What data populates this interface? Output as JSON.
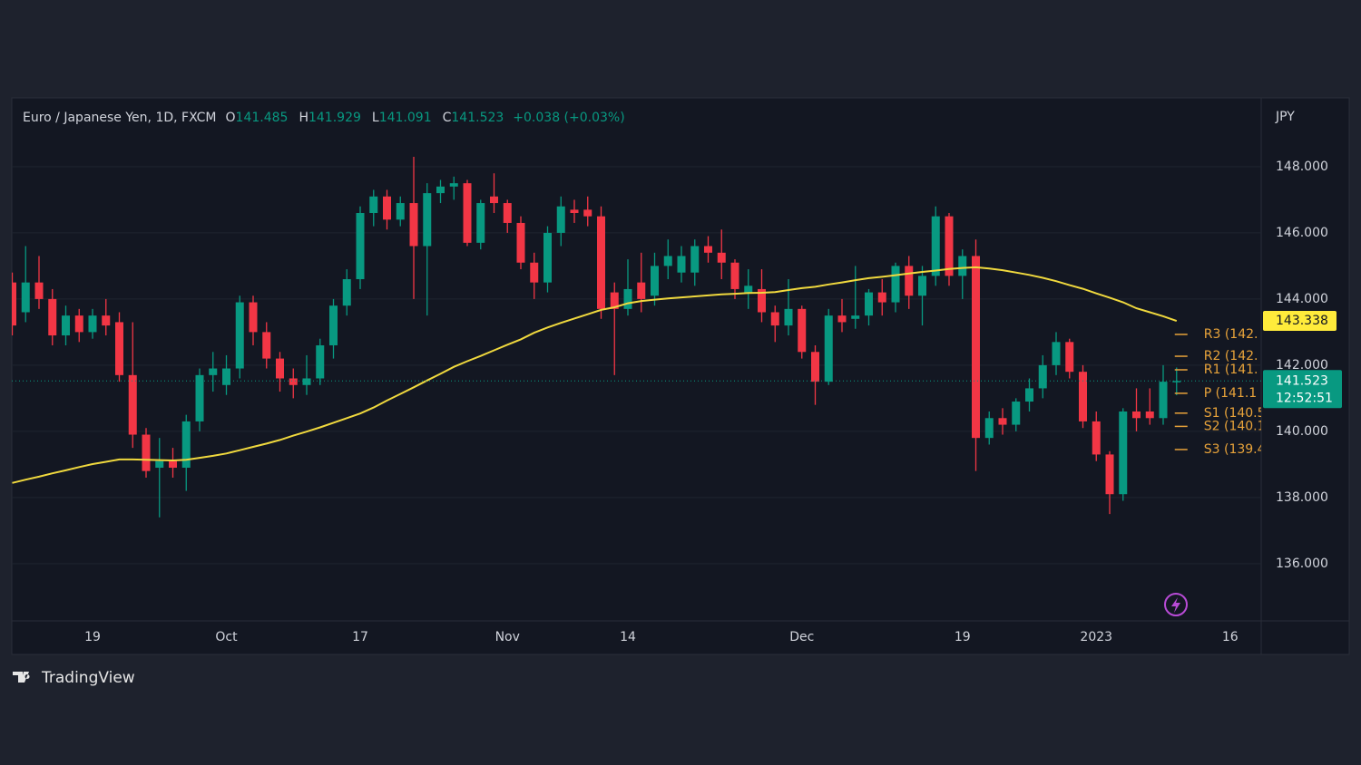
{
  "chart_data": {
    "type": "candlestick",
    "title": "Euro / Japanese Yen, 1D, FXCM",
    "ohlc_labels": {
      "open": "O",
      "high": "H",
      "low": "L",
      "close": "C"
    },
    "change": "+0.038 (+0.03%)",
    "countdown": "12:52:51",
    "y_axis_label": "JPY",
    "brand": "TradingView",
    "up_color": "#089981",
    "down_color": "#f23645",
    "categories": [
      null,
      null,
      null,
      null,
      null,
      null,
      "19",
      null,
      null,
      null,
      null,
      null,
      null,
      null,
      null,
      null,
      "Oct",
      null,
      null,
      null,
      null,
      null,
      null,
      null,
      null,
      null,
      "17",
      null,
      null,
      null,
      null,
      null,
      null,
      null,
      null,
      null,
      null,
      "Nov",
      null,
      null,
      null,
      null,
      null,
      null,
      null,
      null,
      "14",
      null,
      null,
      null,
      null,
      null,
      null,
      null,
      null,
      null,
      null,
      null,
      null,
      "Dec",
      null,
      null,
      null,
      null,
      null,
      null,
      null,
      null,
      null,
      null,
      null,
      "19",
      null,
      null,
      null,
      null,
      null,
      null,
      null,
      null,
      null,
      "2023",
      null,
      null,
      null,
      null,
      null,
      null,
      null,
      null,
      null,
      "16",
      null
    ],
    "open": [
      144.5,
      143.6,
      144.5,
      144.0,
      142.9,
      143.5,
      143.0,
      143.5,
      143.3,
      141.7,
      139.9,
      138.9,
      139.1,
      138.9,
      140.3,
      141.7,
      141.4,
      141.9,
      143.9,
      143.0,
      142.2,
      141.6,
      141.4,
      141.6,
      142.6,
      143.8,
      144.6,
      146.6,
      147.1,
      146.4,
      146.9,
      145.6,
      147.2,
      147.4,
      147.5,
      145.7,
      147.1,
      146.9,
      146.3,
      145.1,
      144.5,
      146.0,
      146.7,
      146.7,
      146.5,
      144.2,
      143.7,
      144.5,
      144.1,
      145.0,
      144.8,
      144.8,
      145.6,
      145.4,
      145.1,
      144.2,
      144.3,
      143.6,
      143.2,
      143.7,
      142.4,
      141.5,
      143.5,
      143.4,
      143.5,
      144.2,
      143.9,
      145.0,
      144.1,
      144.7,
      146.5,
      144.7,
      145.3,
      139.8,
      140.4,
      140.2,
      140.9,
      141.3,
      142.0,
      142.7,
      141.8,
      140.3,
      139.3,
      138.1,
      140.6,
      140.6,
      140.4,
      141.485,
      null,
      null,
      null,
      null,
      null
    ],
    "high": [
      144.8,
      145.6,
      145.3,
      144.3,
      143.8,
      143.7,
      143.7,
      144.0,
      143.6,
      143.3,
      140.1,
      139.8,
      139.5,
      140.5,
      141.9,
      142.4,
      142.3,
      144.1,
      144.1,
      143.3,
      142.4,
      141.9,
      142.3,
      142.8,
      144.0,
      144.9,
      146.8,
      147.3,
      147.3,
      147.1,
      148.3,
      147.5,
      147.6,
      147.7,
      147.6,
      147.0,
      147.8,
      147.0,
      146.5,
      145.4,
      146.2,
      147.1,
      147.0,
      147.1,
      146.8,
      144.5,
      145.2,
      145.4,
      145.4,
      145.8,
      145.6,
      145.8,
      145.9,
      146.1,
      145.2,
      144.9,
      144.9,
      143.8,
      144.6,
      143.8,
      142.6,
      143.7,
      144.0,
      145.0,
      144.3,
      144.6,
      145.1,
      145.3,
      145.0,
      146.8,
      146.6,
      145.5,
      145.8,
      140.6,
      140.7,
      141.0,
      141.6,
      142.3,
      143.0,
      142.8,
      142.0,
      140.6,
      139.4,
      140.7,
      141.3,
      141.3,
      142.0,
      141.929,
      null,
      null,
      null,
      null,
      null
    ],
    "low": [
      142.9,
      143.3,
      143.7,
      142.6,
      142.6,
      142.7,
      142.8,
      142.9,
      141.5,
      139.5,
      138.6,
      137.4,
      138.6,
      138.2,
      140.0,
      141.2,
      141.1,
      141.6,
      142.6,
      141.9,
      141.2,
      141.0,
      141.1,
      141.4,
      142.2,
      143.5,
      144.3,
      146.2,
      146.1,
      146.2,
      144.0,
      143.5,
      146.9,
      147.0,
      145.6,
      145.5,
      146.6,
      146.0,
      144.9,
      144.0,
      144.2,
      145.6,
      146.3,
      146.2,
      143.4,
      141.7,
      143.5,
      143.6,
      143.8,
      144.6,
      144.5,
      144.4,
      145.1,
      144.6,
      144.0,
      143.7,
      143.3,
      142.7,
      142.9,
      142.2,
      140.8,
      141.4,
      143.0,
      143.1,
      143.2,
      143.5,
      143.6,
      143.7,
      143.2,
      144.4,
      144.4,
      144.0,
      138.8,
      139.6,
      139.9,
      140.0,
      140.6,
      141.0,
      141.7,
      141.6,
      140.1,
      139.1,
      137.5,
      137.9,
      140.0,
      140.2,
      140.2,
      141.091,
      null,
      null,
      null,
      null,
      null
    ],
    "close": [
      143.2,
      144.5,
      144.0,
      142.9,
      143.5,
      143.0,
      143.5,
      143.2,
      141.7,
      139.9,
      138.8,
      139.1,
      138.9,
      140.3,
      141.7,
      141.9,
      141.9,
      143.9,
      143.0,
      142.2,
      141.6,
      141.4,
      141.6,
      142.6,
      143.8,
      144.6,
      146.6,
      147.1,
      146.4,
      146.9,
      145.6,
      147.2,
      147.4,
      147.5,
      145.7,
      146.9,
      146.9,
      146.3,
      145.1,
      144.5,
      146.0,
      146.8,
      146.6,
      146.5,
      143.7,
      143.7,
      144.3,
      144.0,
      145.0,
      145.3,
      145.3,
      145.6,
      145.4,
      145.1,
      144.3,
      144.4,
      143.6,
      143.2,
      143.7,
      142.4,
      141.5,
      143.5,
      143.3,
      143.5,
      144.2,
      143.9,
      145.0,
      144.1,
      144.7,
      146.5,
      144.7,
      145.3,
      139.8,
      140.4,
      140.2,
      140.9,
      141.3,
      142.0,
      142.7,
      141.8,
      140.3,
      139.3,
      138.1,
      140.6,
      140.4,
      140.4,
      141.5,
      141.523,
      null,
      null,
      null,
      null,
      null
    ],
    "ma": {
      "color": "#f0d93e",
      "values": [
        138.44,
        138.54,
        138.63,
        138.73,
        138.82,
        138.92,
        139.01,
        139.08,
        139.15,
        139.15,
        139.14,
        139.13,
        139.12,
        139.14,
        139.2,
        139.26,
        139.33,
        139.43,
        139.53,
        139.63,
        139.74,
        139.87,
        139.99,
        140.12,
        140.26,
        140.4,
        140.54,
        140.72,
        140.93,
        141.13,
        141.33,
        141.54,
        141.74,
        141.95,
        142.12,
        142.28,
        142.45,
        142.62,
        142.78,
        142.98,
        143.14,
        143.28,
        143.41,
        143.54,
        143.67,
        143.75,
        143.87,
        143.94,
        143.98,
        144.02,
        144.05,
        144.08,
        144.11,
        144.14,
        144.16,
        144.18,
        144.19,
        144.21,
        144.27,
        144.33,
        144.37,
        144.44,
        144.5,
        144.57,
        144.63,
        144.67,
        144.72,
        144.77,
        144.82,
        144.86,
        144.91,
        144.94,
        144.96,
        144.92,
        144.87,
        144.8,
        144.73,
        144.64,
        144.54,
        144.42,
        144.31,
        144.17,
        144.04,
        143.9,
        143.72,
        143.6,
        143.48,
        143.338,
        null,
        null,
        null,
        null,
        null
      ]
    },
    "pivots": {
      "color": "#e8a33a",
      "levels": [
        {
          "label": "R3 (142.",
          "value": 142.93
        },
        {
          "label": "R2 (142.",
          "value": 142.27
        },
        {
          "label": "R1 (141.",
          "value": 141.86
        },
        {
          "label": "P (141.1",
          "value": 141.15
        },
        {
          "label": "S1 (140.5",
          "value": 140.55
        },
        {
          "label": "S2 (140.1",
          "value": 140.15
        },
        {
          "label": "S3 (139.4",
          "value": 139.45
        }
      ]
    },
    "ylim": [
      134.27,
      150.08
    ],
    "yticks": [
      {
        "value": 136,
        "label": "136.000"
      },
      {
        "value": 138,
        "label": "138.000"
      },
      {
        "value": 140,
        "label": "140.000"
      },
      {
        "value": 142,
        "label": "142.000"
      },
      {
        "value": 144,
        "label": "144.000"
      },
      {
        "value": 146,
        "label": "146.000"
      },
      {
        "value": 148,
        "label": "148.000"
      }
    ],
    "grid": true
  }
}
